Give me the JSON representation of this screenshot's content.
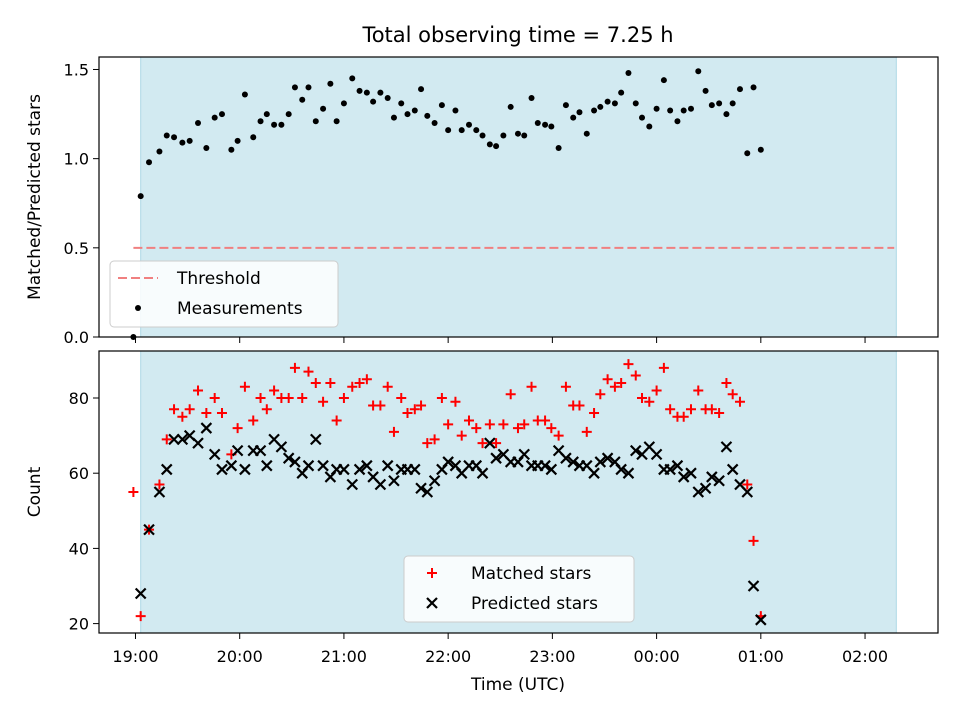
{
  "chart_data": [
    {
      "type": "scatter",
      "title": "Total observing time = 7.25 h",
      "ylabel": "Matched/Predicted stars",
      "xlabel": "",
      "xlim": [
        -0.35,
        7.7
      ],
      "ylim": [
        0.0,
        1.57
      ],
      "yticks": [
        0.0,
        0.5,
        1.0,
        1.5
      ],
      "ytick_labels": [
        "0.0",
        "0.5",
        "1.0",
        "1.5"
      ],
      "shaded_span": [
        0.05,
        7.3
      ],
      "shade_color": "#add8e6",
      "threshold": {
        "name": "Threshold",
        "value": 0.5,
        "x_range": [
          -0.02,
          7.28
        ],
        "color": "#f08080",
        "style": "dashed"
      },
      "legend": {
        "placement": "lower-left",
        "entries": [
          "Threshold",
          "Measurements"
        ]
      },
      "series": [
        {
          "name": "Measurements",
          "color": "#000000",
          "marker": "dot",
          "points": [
            [
              -0.02,
              0.0
            ],
            [
              0.05,
              0.79
            ],
            [
              0.13,
              0.98
            ],
            [
              0.23,
              1.04
            ],
            [
              0.3,
              1.13
            ],
            [
              0.37,
              1.12
            ],
            [
              0.45,
              1.09
            ],
            [
              0.52,
              1.1
            ],
            [
              0.6,
              1.2
            ],
            [
              0.68,
              1.06
            ],
            [
              0.76,
              1.23
            ],
            [
              0.83,
              1.25
            ],
            [
              0.92,
              1.05
            ],
            [
              0.98,
              1.1
            ],
            [
              1.05,
              1.36
            ],
            [
              1.13,
              1.12
            ],
            [
              1.2,
              1.21
            ],
            [
              1.26,
              1.25
            ],
            [
              1.33,
              1.19
            ],
            [
              1.4,
              1.19
            ],
            [
              1.47,
              1.25
            ],
            [
              1.53,
              1.4
            ],
            [
              1.6,
              1.33
            ],
            [
              1.66,
              1.4
            ],
            [
              1.73,
              1.21
            ],
            [
              1.8,
              1.28
            ],
            [
              1.87,
              1.42
            ],
            [
              1.93,
              1.21
            ],
            [
              2.0,
              1.31
            ],
            [
              2.08,
              1.45
            ],
            [
              2.15,
              1.38
            ],
            [
              2.22,
              1.37
            ],
            [
              2.28,
              1.32
            ],
            [
              2.35,
              1.37
            ],
            [
              2.42,
              1.34
            ],
            [
              2.48,
              1.23
            ],
            [
              2.55,
              1.31
            ],
            [
              2.61,
              1.25
            ],
            [
              2.68,
              1.27
            ],
            [
              2.74,
              1.39
            ],
            [
              2.8,
              1.24
            ],
            [
              2.87,
              1.2
            ],
            [
              2.94,
              1.3
            ],
            [
              3.0,
              1.16
            ],
            [
              3.07,
              1.27
            ],
            [
              3.13,
              1.16
            ],
            [
              3.2,
              1.19
            ],
            [
              3.27,
              1.16
            ],
            [
              3.33,
              1.13
            ],
            [
              3.4,
              1.08
            ],
            [
              3.46,
              1.07
            ],
            [
              3.53,
              1.13
            ],
            [
              3.6,
              1.29
            ],
            [
              3.67,
              1.14
            ],
            [
              3.73,
              1.13
            ],
            [
              3.8,
              1.34
            ],
            [
              3.86,
              1.2
            ],
            [
              3.93,
              1.19
            ],
            [
              3.99,
              1.18
            ],
            [
              4.06,
              1.06
            ],
            [
              4.13,
              1.3
            ],
            [
              4.2,
              1.23
            ],
            [
              4.26,
              1.26
            ],
            [
              4.33,
              1.14
            ],
            [
              4.4,
              1.27
            ],
            [
              4.46,
              1.29
            ],
            [
              4.53,
              1.32
            ],
            [
              4.6,
              1.31
            ],
            [
              4.66,
              1.37
            ],
            [
              4.73,
              1.48
            ],
            [
              4.8,
              1.31
            ],
            [
              4.86,
              1.23
            ],
            [
              4.93,
              1.18
            ],
            [
              5.0,
              1.28
            ],
            [
              5.07,
              1.44
            ],
            [
              5.13,
              1.27
            ],
            [
              5.2,
              1.21
            ],
            [
              5.26,
              1.27
            ],
            [
              5.33,
              1.28
            ],
            [
              5.4,
              1.49
            ],
            [
              5.47,
              1.38
            ],
            [
              5.53,
              1.3
            ],
            [
              5.6,
              1.31
            ],
            [
              5.67,
              1.25
            ],
            [
              5.73,
              1.31
            ],
            [
              5.8,
              1.39
            ],
            [
              5.87,
              1.03
            ],
            [
              5.93,
              1.4
            ],
            [
              6.0,
              1.05
            ]
          ]
        }
      ]
    },
    {
      "type": "scatter",
      "title": "",
      "ylabel": "Count",
      "xlabel": "Time (UTC)",
      "xlim": [
        -0.35,
        7.7
      ],
      "ylim": [
        17.5,
        92.5
      ],
      "yticks": [
        20,
        40,
        60,
        80
      ],
      "ytick_labels": [
        "20",
        "40",
        "60",
        "80"
      ],
      "xticks": [
        0,
        1,
        2,
        3,
        4,
        5,
        6,
        7
      ],
      "xtick_labels": [
        "19:00",
        "20:00",
        "21:00",
        "22:00",
        "23:00",
        "00:00",
        "01:00",
        "02:00"
      ],
      "shaded_span": [
        0.05,
        7.3
      ],
      "shade_color": "#add8e6",
      "legend": {
        "placement": "lower-center",
        "entries": [
          "Matched stars",
          "Predicted stars"
        ]
      },
      "series": [
        {
          "name": "Matched stars",
          "color": "#ff0000",
          "marker": "plus",
          "points": [
            [
              -0.02,
              55
            ],
            [
              0.05,
              22
            ],
            [
              0.13,
              45
            ],
            [
              0.23,
              57
            ],
            [
              0.3,
              69
            ],
            [
              0.37,
              77
            ],
            [
              0.45,
              75
            ],
            [
              0.52,
              77
            ],
            [
              0.6,
              82
            ],
            [
              0.68,
              76
            ],
            [
              0.76,
              80
            ],
            [
              0.83,
              76
            ],
            [
              0.92,
              65
            ],
            [
              0.98,
              72
            ],
            [
              1.05,
              83
            ],
            [
              1.13,
              74
            ],
            [
              1.2,
              80
            ],
            [
              1.26,
              77
            ],
            [
              1.33,
              82
            ],
            [
              1.4,
              80
            ],
            [
              1.47,
              80
            ],
            [
              1.53,
              88
            ],
            [
              1.6,
              80
            ],
            [
              1.66,
              87
            ],
            [
              1.73,
              84
            ],
            [
              1.8,
              79
            ],
            [
              1.87,
              84
            ],
            [
              1.93,
              74
            ],
            [
              2.0,
              80
            ],
            [
              2.08,
              83
            ],
            [
              2.15,
              84
            ],
            [
              2.22,
              85
            ],
            [
              2.28,
              78
            ],
            [
              2.35,
              78
            ],
            [
              2.42,
              83
            ],
            [
              2.48,
              71
            ],
            [
              2.55,
              80
            ],
            [
              2.61,
              76
            ],
            [
              2.68,
              77
            ],
            [
              2.74,
              78
            ],
            [
              2.8,
              68
            ],
            [
              2.87,
              69
            ],
            [
              2.94,
              80
            ],
            [
              3.0,
              73
            ],
            [
              3.07,
              79
            ],
            [
              3.13,
              70
            ],
            [
              3.2,
              74
            ],
            [
              3.27,
              72
            ],
            [
              3.33,
              68
            ],
            [
              3.4,
              73
            ],
            [
              3.46,
              68
            ],
            [
              3.53,
              73
            ],
            [
              3.6,
              81
            ],
            [
              3.67,
              72
            ],
            [
              3.73,
              73
            ],
            [
              3.8,
              83
            ],
            [
              3.86,
              74
            ],
            [
              3.93,
              74
            ],
            [
              3.99,
              72
            ],
            [
              4.06,
              70
            ],
            [
              4.13,
              83
            ],
            [
              4.2,
              78
            ],
            [
              4.26,
              78
            ],
            [
              4.33,
              71
            ],
            [
              4.4,
              76
            ],
            [
              4.46,
              81
            ],
            [
              4.53,
              85
            ],
            [
              4.6,
              83
            ],
            [
              4.66,
              84
            ],
            [
              4.73,
              89
            ],
            [
              4.8,
              86
            ],
            [
              4.86,
              80
            ],
            [
              4.93,
              79
            ],
            [
              5.0,
              82
            ],
            [
              5.07,
              88
            ],
            [
              5.13,
              77
            ],
            [
              5.2,
              75
            ],
            [
              5.26,
              75
            ],
            [
              5.33,
              77
            ],
            [
              5.4,
              82
            ],
            [
              5.47,
              77
            ],
            [
              5.53,
              77
            ],
            [
              5.6,
              76
            ],
            [
              5.67,
              84
            ],
            [
              5.73,
              81
            ],
            [
              5.8,
              79
            ],
            [
              5.87,
              57
            ],
            [
              5.93,
              42
            ],
            [
              6.0,
              22
            ]
          ]
        },
        {
          "name": "Predicted stars",
          "color": "#000000",
          "marker": "x",
          "points": [
            [
              0.05,
              28
            ],
            [
              0.13,
              45
            ],
            [
              0.23,
              55
            ],
            [
              0.3,
              61
            ],
            [
              0.37,
              69
            ],
            [
              0.45,
              69
            ],
            [
              0.52,
              70
            ],
            [
              0.6,
              68
            ],
            [
              0.68,
              72
            ],
            [
              0.76,
              65
            ],
            [
              0.83,
              61
            ],
            [
              0.92,
              62
            ],
            [
              0.98,
              66
            ],
            [
              1.05,
              61
            ],
            [
              1.13,
              66
            ],
            [
              1.2,
              66
            ],
            [
              1.26,
              62
            ],
            [
              1.33,
              69
            ],
            [
              1.4,
              67
            ],
            [
              1.47,
              64
            ],
            [
              1.53,
              63
            ],
            [
              1.6,
              60
            ],
            [
              1.66,
              62
            ],
            [
              1.73,
              69
            ],
            [
              1.8,
              62
            ],
            [
              1.87,
              59
            ],
            [
              1.93,
              61
            ],
            [
              2.0,
              61
            ],
            [
              2.08,
              57
            ],
            [
              2.15,
              61
            ],
            [
              2.22,
              62
            ],
            [
              2.28,
              59
            ],
            [
              2.35,
              57
            ],
            [
              2.42,
              62
            ],
            [
              2.48,
              58
            ],
            [
              2.55,
              61
            ],
            [
              2.61,
              61
            ],
            [
              2.68,
              61
            ],
            [
              2.74,
              56
            ],
            [
              2.8,
              55
            ],
            [
              2.87,
              58
            ],
            [
              2.94,
              61
            ],
            [
              3.0,
              63
            ],
            [
              3.07,
              62
            ],
            [
              3.13,
              60
            ],
            [
              3.2,
              62
            ],
            [
              3.27,
              62
            ],
            [
              3.33,
              60
            ],
            [
              3.4,
              68
            ],
            [
              3.46,
              64
            ],
            [
              3.53,
              65
            ],
            [
              3.6,
              63
            ],
            [
              3.67,
              63
            ],
            [
              3.73,
              65
            ],
            [
              3.8,
              62
            ],
            [
              3.86,
              62
            ],
            [
              3.93,
              62
            ],
            [
              3.99,
              61
            ],
            [
              4.06,
              66
            ],
            [
              4.13,
              64
            ],
            [
              4.2,
              63
            ],
            [
              4.26,
              62
            ],
            [
              4.33,
              62
            ],
            [
              4.4,
              60
            ],
            [
              4.46,
              63
            ],
            [
              4.53,
              64
            ],
            [
              4.6,
              63
            ],
            [
              4.66,
              61
            ],
            [
              4.73,
              60
            ],
            [
              4.8,
              66
            ],
            [
              4.86,
              65
            ],
            [
              4.93,
              67
            ],
            [
              5.0,
              65
            ],
            [
              5.07,
              61
            ],
            [
              5.13,
              61
            ],
            [
              5.2,
              62
            ],
            [
              5.26,
              59
            ],
            [
              5.33,
              60
            ],
            [
              5.4,
              55
            ],
            [
              5.47,
              56
            ],
            [
              5.53,
              59
            ],
            [
              5.6,
              58
            ],
            [
              5.67,
              67
            ],
            [
              5.73,
              61
            ],
            [
              5.8,
              57
            ],
            [
              5.87,
              55
            ],
            [
              5.93,
              30
            ],
            [
              6.0,
              21
            ]
          ]
        }
      ]
    }
  ]
}
